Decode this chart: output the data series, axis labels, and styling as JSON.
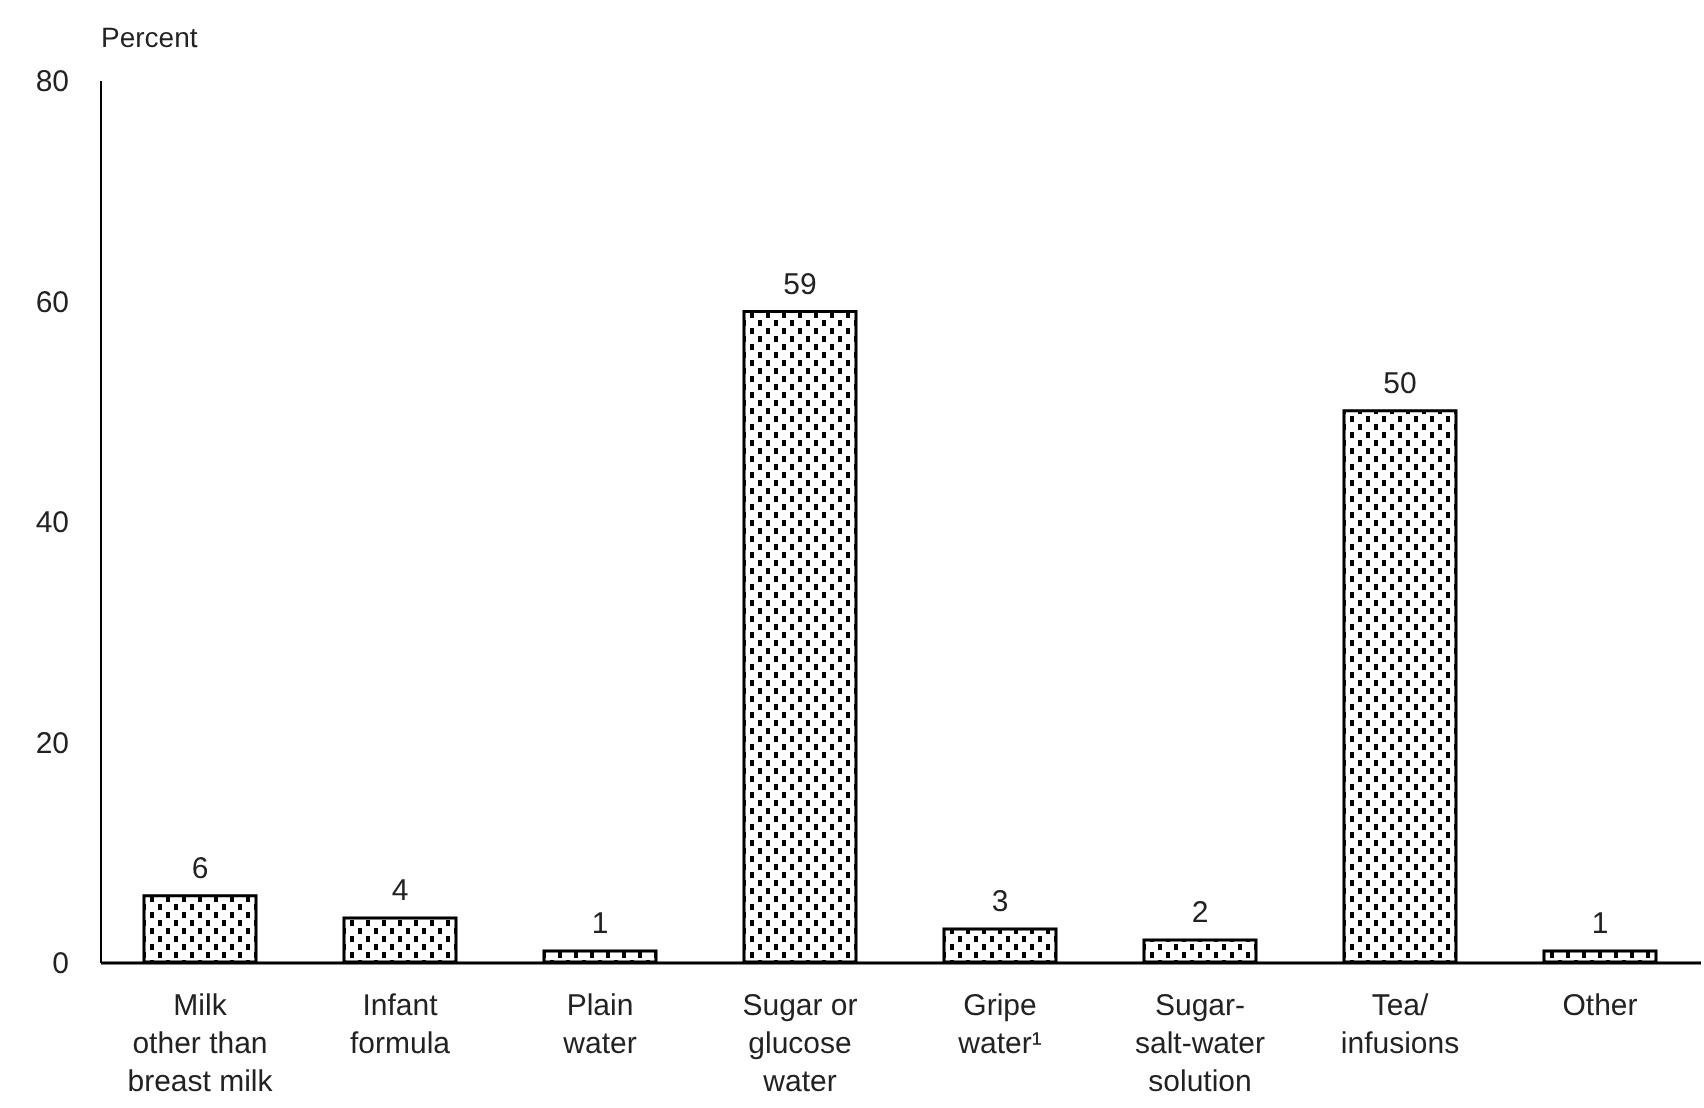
{
  "chart_data": {
    "type": "bar",
    "ylabel": "Percent",
    "categories": [
      "Milk\nother than\nbreast milk",
      "Infant\nformula",
      "Plain\nwater",
      "Sugar or\nglucose\nwater",
      "Gripe\nwater¹",
      "Sugar-\nsalt-water\nsolution",
      "Tea/\ninfusions",
      "Other"
    ],
    "values": [
      6,
      4,
      1,
      59,
      3,
      2,
      50,
      1
    ],
    "color": "#000000",
    "ylim": [
      0,
      80
    ],
    "yticks": [
      0,
      20,
      40,
      60,
      80
    ],
    "data_labels": true
  }
}
